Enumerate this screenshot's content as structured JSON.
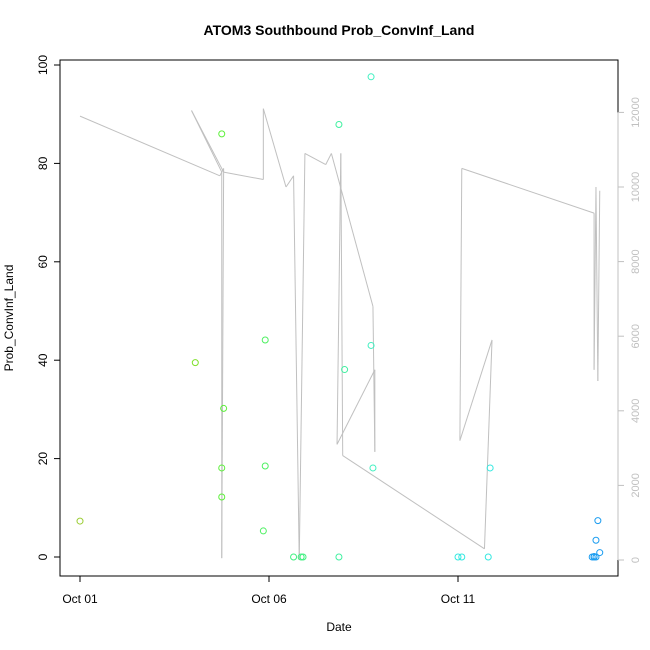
{
  "chart_data": {
    "type": "scatter",
    "title": "ATOM3 Southbound Prob_ConvInf_Land",
    "xlabel": "Date",
    "ylabel": "Prob_ConvInf_Land",
    "x_ticks": [
      "Oct 01",
      "Oct 06",
      "Oct 11"
    ],
    "y_ticks": [
      "0",
      "20",
      "40",
      "60",
      "80",
      "100"
    ],
    "y2_ticks": [
      "0",
      "2000",
      "4000",
      "6000",
      "8000",
      "10000",
      "12000"
    ],
    "xlim_days": [
      0.0,
      13.9
    ],
    "ylim": [
      0,
      100
    ],
    "y2lim": [
      0,
      12400
    ],
    "grid": false,
    "legend": "none",
    "colors": {
      "line": "#c0c0c0",
      "axis": "#000000",
      "y2axis": "#c0c0c0"
    },
    "series": [
      {
        "points": [
          {
            "x": 0.0,
            "y": 7.3,
            "color": "#9acd32"
          },
          {
            "x": 3.05,
            "y": 39.5,
            "color": "#7fe02a"
          },
          {
            "x": 3.75,
            "y": 86.0,
            "color": "#5cf03a"
          },
          {
            "x": 3.75,
            "y": 18.1,
            "color": "#5cf03a"
          },
          {
            "x": 3.75,
            "y": 12.2,
            "color": "#5cf03a"
          },
          {
            "x": 3.8,
            "y": 30.2,
            "color": "#5cf03a"
          },
          {
            "x": 4.85,
            "y": 5.3,
            "color": "#4cf060"
          },
          {
            "x": 4.9,
            "y": 44.1,
            "color": "#4cf060"
          },
          {
            "x": 4.9,
            "y": 18.5,
            "color": "#4cf060"
          },
          {
            "x": 5.65,
            "y": 0.0,
            "color": "#40f080"
          },
          {
            "x": 5.85,
            "y": 0.0,
            "color": "#40f080"
          },
          {
            "x": 5.9,
            "y": 0.0,
            "color": "#40f080"
          },
          {
            "x": 6.85,
            "y": 87.9,
            "color": "#3ff0a0"
          },
          {
            "x": 6.85,
            "y": 0.0,
            "color": "#3ff0a0"
          },
          {
            "x": 7.0,
            "y": 38.1,
            "color": "#3ff0a0"
          },
          {
            "x": 7.7,
            "y": 97.6,
            "color": "#3ff0c0"
          },
          {
            "x": 7.7,
            "y": 43.0,
            "color": "#3ff0c0"
          },
          {
            "x": 7.75,
            "y": 18.1,
            "color": "#3ff0c0"
          },
          {
            "x": 10.0,
            "y": 0.0,
            "color": "#33e8e0"
          },
          {
            "x": 10.1,
            "y": 0.0,
            "color": "#33e8e0"
          },
          {
            "x": 10.8,
            "y": 0.0,
            "color": "#33e8e0"
          },
          {
            "x": 10.85,
            "y": 18.1,
            "color": "#33e8e0"
          },
          {
            "x": 13.55,
            "y": 0.0,
            "color": "#1a9cf0"
          },
          {
            "x": 13.6,
            "y": 0.0,
            "color": "#1a9cf0"
          },
          {
            "x": 13.6,
            "y": 0.1,
            "color": "#1a9cf0"
          },
          {
            "x": 13.65,
            "y": 0.0,
            "color": "#1a9cf0"
          },
          {
            "x": 13.65,
            "y": 3.4,
            "color": "#1a9cf0"
          },
          {
            "x": 13.7,
            "y": 7.4,
            "color": "#1a9cf0"
          },
          {
            "x": 13.75,
            "y": 0.9,
            "color": "#1a9cf0"
          }
        ]
      },
      {
        "axis": "right",
        "line": [
          {
            "x": 0.0,
            "y": 11900
          },
          {
            "x": 3.7,
            "y": 10300
          },
          {
            "x": 3.8,
            "y": 10500
          },
          {
            "x": 3.75,
            "y": 50
          },
          {
            "x": 3.75,
            "y": 10400
          },
          {
            "x": 2.95,
            "y": 12050
          },
          {
            "x": 3.8,
            "y": 10400
          },
          {
            "x": 4.85,
            "y": 10200
          },
          {
            "x": 4.85,
            "y": 12100
          },
          {
            "x": 5.45,
            "y": 10000
          },
          {
            "x": 5.65,
            "y": 10300
          },
          {
            "x": 5.8,
            "y": 0
          },
          {
            "x": 5.95,
            "y": 10900
          },
          {
            "x": 6.5,
            "y": 10600
          },
          {
            "x": 6.65,
            "y": 10900
          },
          {
            "x": 7.75,
            "y": 6800
          },
          {
            "x": 7.8,
            "y": 2900
          },
          {
            "x": 7.8,
            "y": 5100
          },
          {
            "x": 6.8,
            "y": 3100
          },
          {
            "x": 6.9,
            "y": 10900
          },
          {
            "x": 6.95,
            "y": 2800
          },
          {
            "x": 10.7,
            "y": 300
          },
          {
            "x": 10.9,
            "y": 5900
          },
          {
            "x": 10.05,
            "y": 3200
          },
          {
            "x": 10.1,
            "y": 10500
          },
          {
            "x": 13.6,
            "y": 9300
          },
          {
            "x": 13.6,
            "y": 5100
          },
          {
            "x": 13.65,
            "y": 10000
          },
          {
            "x": 13.7,
            "y": 4800
          },
          {
            "x": 13.75,
            "y": 9900
          }
        ]
      }
    ]
  }
}
